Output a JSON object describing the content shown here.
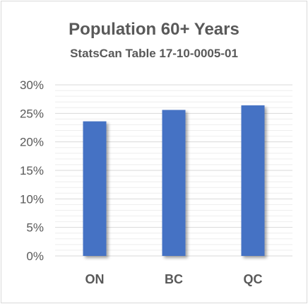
{
  "chart_data": {
    "type": "bar",
    "title": "Population 60+ Years",
    "subtitle": "StatsCan Table 17-10-0005-01",
    "categories": [
      "ON",
      "BC",
      "QC"
    ],
    "values": [
      23.6,
      25.6,
      26.4
    ],
    "value_unit": "%",
    "ylim": [
      0,
      30
    ],
    "yticks": [
      0,
      5,
      10,
      15,
      20,
      25,
      30
    ],
    "ytick_labels": [
      "0%",
      "5%",
      "10%",
      "15%",
      "20%",
      "25%",
      "30%"
    ],
    "grid": true,
    "legend": "none",
    "bar_color": "#4472c4",
    "grid_color": "#d9d9d9"
  }
}
